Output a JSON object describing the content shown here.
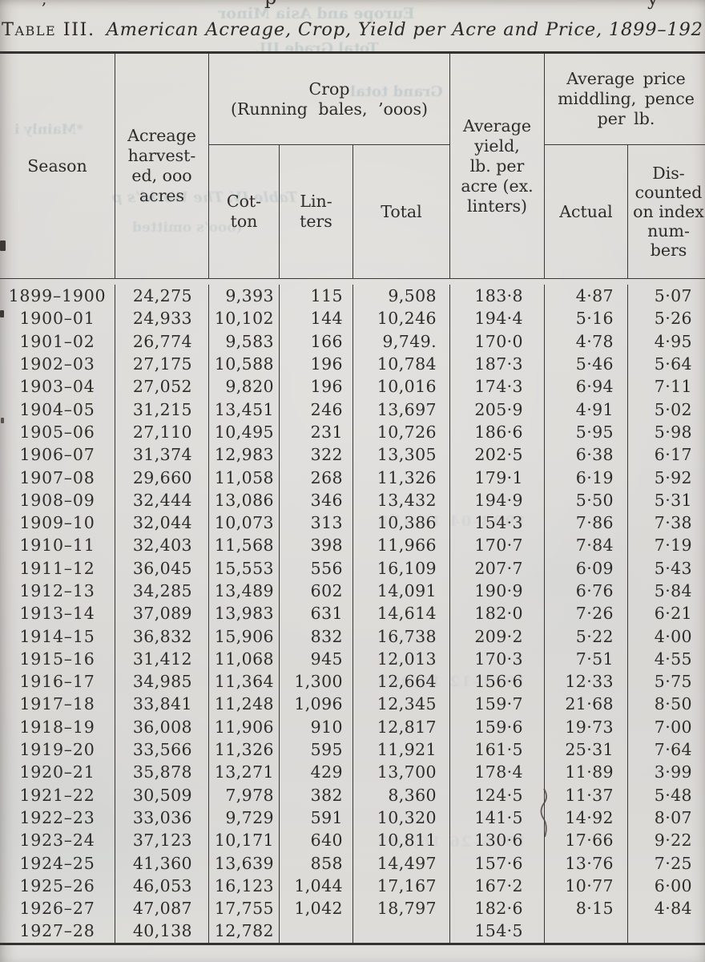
{
  "page": {
    "title_label": "Table III.",
    "title_italic": "American Acreage, Crop, Yield per Acre and Price, 1899–192"
  },
  "table": {
    "headers": {
      "season": "Season",
      "acreage": "Acreage\nharvest-\ned, ooo\nacres",
      "crop_group": "Crop\n(Running bales, ’ooos)",
      "cotton": "Cot-\nton",
      "linters": "Lin-\nters",
      "total": "Total",
      "yield": "Average\nyield,\nlb. per\nacre (ex.\nlinters)",
      "price_group": "Average price\nmiddling, pence\nper lb.",
      "actual": "Actual",
      "discounted": "Dis-\ncounted\non index\nnum-\nbers"
    },
    "columns": [
      "Season",
      "Acreage harvested, ooo acres",
      "Cotton",
      "Linters",
      "Total",
      "Average yield, lb. per acre (ex. linters)",
      "Actual",
      "Discounted on index numbers"
    ],
    "rows": [
      [
        "1899–1900",
        "24,275",
        "9,393",
        "115",
        "9,508",
        "183·8",
        "4·87",
        "5·07"
      ],
      [
        "1900–01",
        "24,933",
        "10,102",
        "144",
        "10,246",
        "194·4",
        "5·16",
        "5·26"
      ],
      [
        "1901–02",
        "26,774",
        "9,583",
        "166",
        "9,749.",
        "170·0",
        "4·78",
        "4·95"
      ],
      [
        "1902–03",
        "27,175",
        "10,588",
        "196",
        "10,784",
        "187·3",
        "5·46",
        "5·64"
      ],
      [
        "1903–04",
        "27,052",
        "9,820",
        "196",
        "10,016",
        "174·3",
        "6·94",
        "7·11"
      ],
      [
        "1904–05",
        "31,215",
        "13,451",
        "246",
        "13,697",
        "205·9",
        "4·91",
        "5·02"
      ],
      [
        "1905–06",
        "27,110",
        "10,495",
        "231",
        "10,726",
        "186·6",
        "5·95",
        "5·98"
      ],
      [
        "1906–07",
        "31,374",
        "12,983",
        "322",
        "13,305",
        "202·5",
        "6·38",
        "6·17"
      ],
      [
        "1907–08",
        "29,660",
        "11,058",
        "268",
        "11,326",
        "179·1",
        "6·19",
        "5·92"
      ],
      [
        "1908–09",
        "32,444",
        "13,086",
        "346",
        "13,432",
        "194·9",
        "5·50",
        "5·31"
      ],
      [
        "1909–10",
        "32,044",
        "10,073",
        "313",
        "10,386",
        "154·3",
        "7·86",
        "7·38"
      ],
      [
        "1910–11",
        "32,403",
        "11,568",
        "398",
        "11,966",
        "170·7",
        "7·84",
        "7·19"
      ],
      [
        "1911–12",
        "36,045",
        "15,553",
        "556",
        "16,109",
        "207·7",
        "6·09",
        "5·43"
      ],
      [
        "1912–13",
        "34,285",
        "13,489",
        "602",
        "14,091",
        "190·9",
        "6·76",
        "5·84"
      ],
      [
        "1913–14",
        "37,089",
        "13,983",
        "631",
        "14,614",
        "182·0",
        "7·26",
        "6·21"
      ],
      [
        "1914–15",
        "36,832",
        "15,906",
        "832",
        "16,738",
        "209·2",
        "5·22",
        "4·00"
      ],
      [
        "1915–16",
        "31,412",
        "11,068",
        "945",
        "12,013",
        "170·3",
        "7·51",
        "4·55"
      ],
      [
        "1916–17",
        "34,985",
        "11,364",
        "1,300",
        "12,664",
        "156·6",
        "12·33",
        "5·75"
      ],
      [
        "1917–18",
        "33,841",
        "11,248",
        "1,096",
        "12,345",
        "159·7",
        "21·68",
        "8·50"
      ],
      [
        "1918–19",
        "36,008",
        "11,906",
        "910",
        "12,817",
        "159·6",
        "19·73",
        "7·00"
      ],
      [
        "1919–20",
        "33,566",
        "11,326",
        "595",
        "11,921",
        "161·5",
        "25·31",
        "7·64"
      ],
      [
        "1920–21",
        "35,878",
        "13,271",
        "429",
        "13,700",
        "178·4",
        "11·89",
        "3·99"
      ],
      [
        "1921–22",
        "30,509",
        "7,978",
        "382",
        "8,360",
        "124·5",
        "11·37",
        "5·48"
      ],
      [
        "1922–23",
        "33,036",
        "9,729",
        "591",
        "10,320",
        "141·5",
        "14·92",
        "8·07"
      ],
      [
        "1923–24",
        "37,123",
        "10,171",
        "640",
        "10,811",
        "130·6",
        "17·66",
        "9·22"
      ],
      [
        "1924–25",
        "41,360",
        "13,639",
        "858",
        "14,497",
        "157·6",
        "13·76",
        "7·25"
      ],
      [
        "1925–26",
        "46,053",
        "16,123",
        "1,044",
        "17,167",
        "167·2",
        "10·77",
        "6·00"
      ],
      [
        "1926–27",
        "47,087",
        "17,755",
        "1,042",
        "18,797",
        "182·6",
        "8·15",
        "4·84"
      ],
      [
        "1927–28",
        "40,138",
        "12,782",
        "",
        "",
        "154·5",
        "",
        ""
      ]
    ]
  },
  "bleedthrough": {
    "items": [
      "Europe and Asia Minor",
      "Total Grade III.",
      "Grand total",
      "*Mainly i",
      "Table IV. The World’s p",
      "(ooo’s omitted",
      "1903–04  12,178",
      "1911–12  14,093",
      "1925–26  16,103"
    ]
  },
  "colors": {
    "paper": "#dcdad7",
    "ink": "#2e2c29",
    "ghost": "#9db3ba"
  }
}
